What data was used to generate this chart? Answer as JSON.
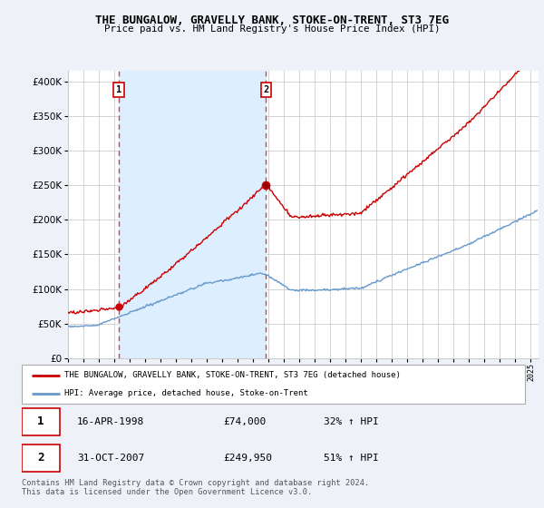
{
  "title": "THE BUNGALOW, GRAVELLY BANK, STOKE-ON-TRENT, ST3 7EG",
  "subtitle": "Price paid vs. HM Land Registry's House Price Index (HPI)",
  "yticks": [
    0,
    50000,
    100000,
    150000,
    200000,
    250000,
    300000,
    350000,
    400000
  ],
  "ylim": [
    0,
    415000
  ],
  "xlim_start": 1995.0,
  "xlim_end": 2025.5,
  "purchase1_date": 1998.29,
  "purchase1_price": 74000,
  "purchase2_date": 2007.83,
  "purchase2_price": 249950,
  "legend_line1": "THE BUNGALOW, GRAVELLY BANK, STOKE-ON-TRENT, ST3 7EG (detached house)",
  "legend_line2": "HPI: Average price, detached house, Stoke-on-Trent",
  "table_row1": [
    "1",
    "16-APR-1998",
    "£74,000",
    "32% ↑ HPI"
  ],
  "table_row2": [
    "2",
    "31-OCT-2007",
    "£249,950",
    "51% ↑ HPI"
  ],
  "footer": "Contains HM Land Registry data © Crown copyright and database right 2024.\nThis data is licensed under the Open Government Licence v3.0.",
  "hpi_color": "#6699cc",
  "property_color": "#cc0000",
  "vline_color": "#cc4444",
  "shade_color": "#ddeeff",
  "bg_color": "#eef2f8",
  "plot_bg": "#ffffff",
  "grid_color": "#cccccc"
}
